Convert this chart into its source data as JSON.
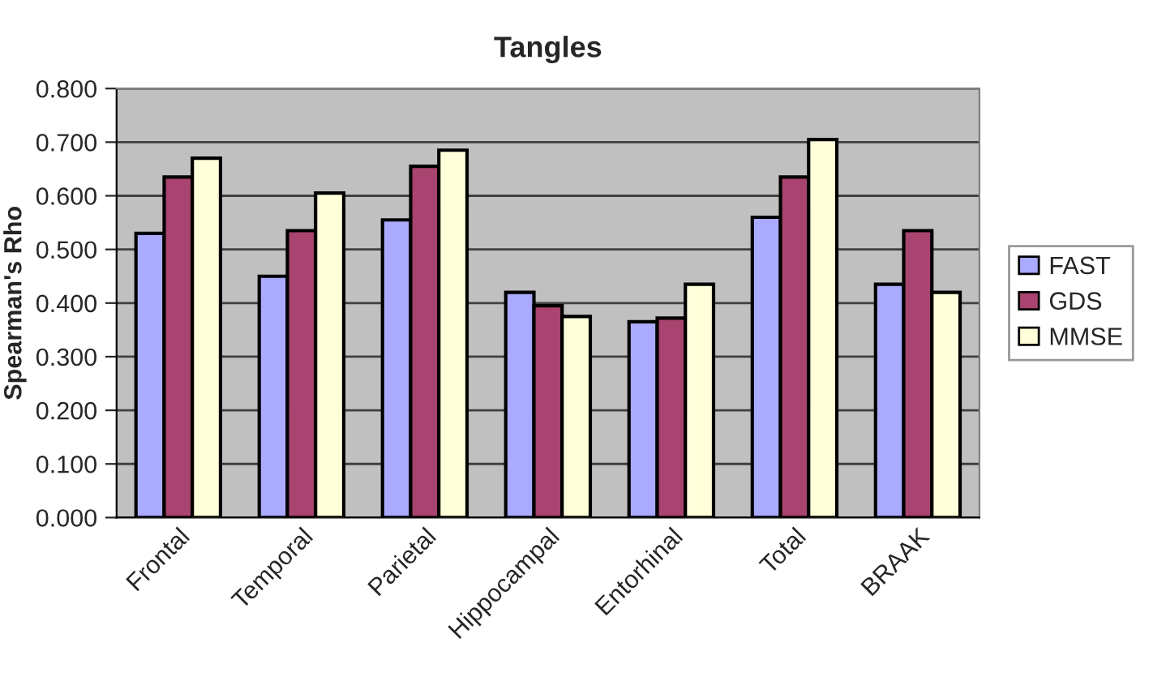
{
  "chart_data": {
    "type": "bar",
    "title": "Tangles",
    "ylabel": "Spearman's Rho",
    "categories": [
      "Frontal",
      "Temporal",
      "Parietal",
      "Hippocampal",
      "Entorhinal",
      "Total",
      "BRAAK"
    ],
    "series": [
      {
        "name": "FAST",
        "color": "#aaaaff",
        "values": [
          0.53,
          0.45,
          0.555,
          0.42,
          0.365,
          0.56,
          0.435
        ]
      },
      {
        "name": "GDS",
        "color": "#a8446f",
        "values": [
          0.635,
          0.535,
          0.655,
          0.395,
          0.372,
          0.635,
          0.535
        ]
      },
      {
        "name": "MMSE",
        "color": "#ffffd9",
        "values": [
          0.67,
          0.605,
          0.685,
          0.375,
          0.435,
          0.705,
          0.42
        ]
      }
    ],
    "ylim": [
      0,
      0.8
    ],
    "yticks": [
      {
        "value": 0,
        "label": "0.000"
      },
      {
        "value": 0.1,
        "label": "0.100"
      },
      {
        "value": 0.2,
        "label": "0.200"
      },
      {
        "value": 0.3,
        "label": "0.300"
      },
      {
        "value": 0.4,
        "label": "0.400"
      },
      {
        "value": 0.5,
        "label": "0.500"
      },
      {
        "value": 0.6,
        "label": "0.600"
      },
      {
        "value": 0.7,
        "label": "0.700"
      },
      {
        "value": 0.8,
        "label": "0.800"
      }
    ],
    "grid": "y",
    "legend": "right"
  }
}
